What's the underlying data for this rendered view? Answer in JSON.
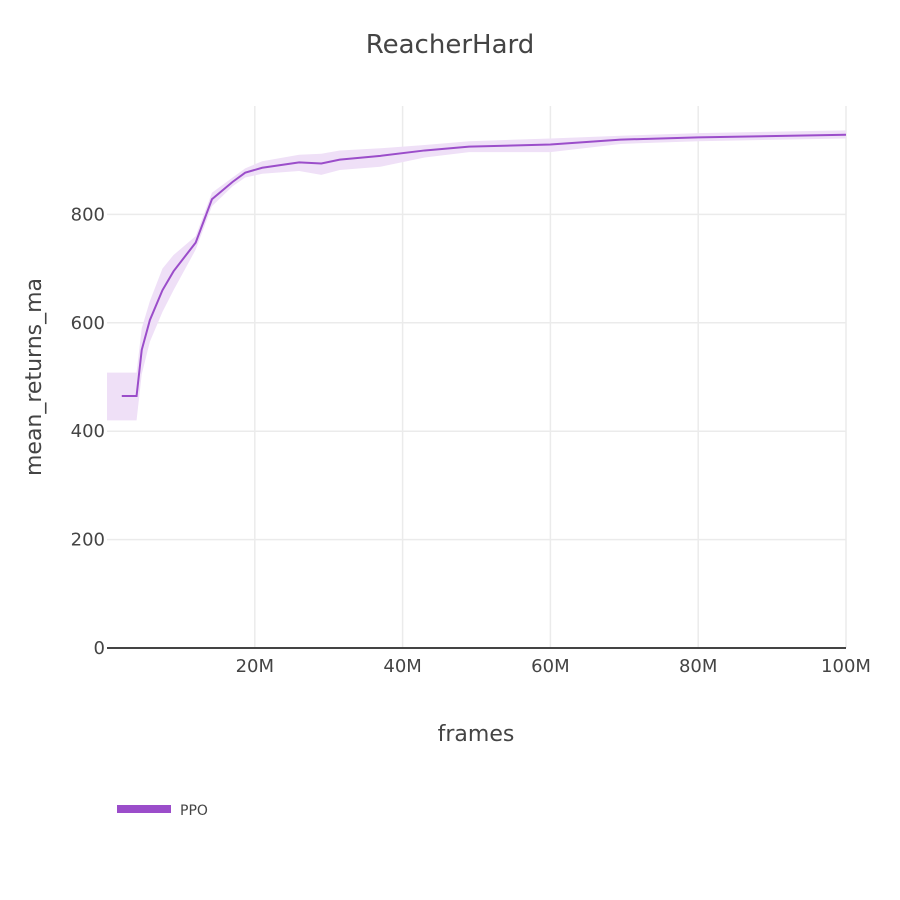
{
  "chart_data": {
    "type": "line",
    "title": "ReacherHard",
    "xlabel": "frames",
    "ylabel": "mean_returns_ma",
    "xlim": [
      0,
      100000000
    ],
    "ylim": [
      0,
      1000
    ],
    "x_ticks": [
      20000000,
      40000000,
      60000000,
      80000000,
      100000000
    ],
    "x_tick_labels": [
      "20M",
      "40M",
      "60M",
      "80M",
      "100M"
    ],
    "y_ticks": [
      0,
      200,
      400,
      600,
      800
    ],
    "y_tick_labels": [
      "0",
      "200",
      "400",
      "600",
      "800"
    ],
    "grid": true,
    "legend_position": "bottom-left",
    "series": [
      {
        "name": "PPO",
        "color": "#9b4dca",
        "band_color": "#efe0f7",
        "x": [
          2000000,
          4000000,
          4700000,
          5800000,
          7500000,
          9000000,
          12000000,
          14200000,
          17000000,
          18700000,
          21000000,
          26000000,
          29000000,
          31500000,
          37000000,
          43000000,
          49000000,
          60000000,
          69500000,
          80000000,
          100000000
        ],
        "values": [
          465,
          465,
          550,
          605,
          660,
          695,
          748,
          828,
          860,
          877,
          886,
          896,
          894,
          901,
          908,
          918,
          925,
          929,
          938,
          942,
          947
        ],
        "upper": [
          508,
          508,
          590,
          640,
          700,
          725,
          760,
          840,
          868,
          885,
          898,
          910,
          912,
          918,
          922,
          928,
          935,
          940,
          945,
          950,
          955
        ],
        "lower": [
          420,
          420,
          505,
          565,
          620,
          660,
          735,
          815,
          852,
          868,
          875,
          880,
          873,
          882,
          888,
          905,
          915,
          915,
          930,
          935,
          940
        ]
      }
    ]
  },
  "legend": {
    "items": [
      {
        "label": "PPO",
        "color": "#9b4dca"
      }
    ]
  }
}
